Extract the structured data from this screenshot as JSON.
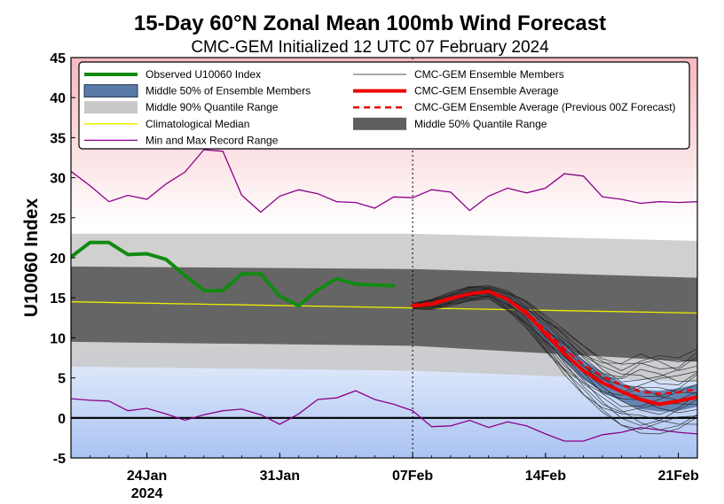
{
  "chart_data": {
    "type": "line",
    "title": "15-Day 60°N Zonal Mean 100mb Wind Forecast",
    "subtitle": "CMC-GEM Initialized 12 UTC 07 February 2024",
    "ylabel": "U10060 Index",
    "xlabel": "",
    "ylim": [
      -5,
      45
    ],
    "yticks": [
      -5,
      0,
      5,
      10,
      15,
      20,
      25,
      30,
      35,
      40,
      45
    ],
    "xlim": [
      "2024-01-20",
      "2024-02-22"
    ],
    "xticks": [
      {
        "date": "2024-01-24",
        "label": "24Jan",
        "label2": "2024"
      },
      {
        "date": "2024-01-31",
        "label": "31Jan",
        "label2": ""
      },
      {
        "date": "2024-02-07",
        "label": "07Feb",
        "label2": ""
      },
      {
        "date": "2024-02-14",
        "label": "14Feb",
        "label2": ""
      },
      {
        "date": "2024-02-21",
        "label": "21Feb",
        "label2": ""
      }
    ],
    "initialization_date": "2024-02-07",
    "grid": false,
    "legend_position": "top",
    "legend": [
      {
        "label": "Observed U10060 Index",
        "key": "observed"
      },
      {
        "label": "CMC-GEM Ensemble Members",
        "key": "members"
      },
      {
        "label": "Middle 50% of Ensemble Members",
        "key": "ens_iqr"
      },
      {
        "label": "CMC-GEM Ensemble Average",
        "key": "ens_mean"
      },
      {
        "label": "Middle 90% Quantile Range",
        "key": "clim90"
      },
      {
        "label": "CMC-GEM Ensemble Average (Previous 00Z Forecast)",
        "key": "prev_mean"
      },
      {
        "label": "Climatological Median",
        "key": "clim_median"
      },
      {
        "label": "Middle 50% Quantile Range",
        "key": "clim50"
      },
      {
        "label": "Min and Max Record Range",
        "key": "record"
      }
    ],
    "colors": {
      "observed": "#118a11",
      "members": "#1a1a1a",
      "ens_iqr": "#5a7aa8",
      "ens_mean": "#ee0000",
      "prev_mean": "#ee0000",
      "clim90": "#c8c8c8",
      "clim50": "#5f5f5f",
      "clim_median": "#eeee00",
      "record": "#8a008a",
      "bg_top": "#f6b9bf",
      "bg_bottom": "#aac3f2"
    },
    "series": {
      "observed": {
        "x": [
          "2024-01-20",
          "2024-01-21",
          "2024-01-22",
          "2024-01-23",
          "2024-01-24",
          "2024-01-25",
          "2024-01-26",
          "2024-01-27",
          "2024-01-28",
          "2024-01-29",
          "2024-01-30",
          "2024-01-31",
          "2024-02-01",
          "2024-02-02",
          "2024-02-03",
          "2024-02-04",
          "2024-02-05",
          "2024-02-06"
        ],
        "y": [
          20.1,
          21.9,
          21.9,
          20.4,
          20.5,
          19.8,
          17.8,
          15.9,
          15.9,
          18.0,
          18.0,
          15.2,
          14.0,
          16.0,
          17.4,
          16.7,
          16.6,
          16.5
        ]
      },
      "record_max": {
        "x": [
          "2024-01-20",
          "2024-01-21",
          "2024-01-22",
          "2024-01-23",
          "2024-01-24",
          "2024-01-25",
          "2024-01-26",
          "2024-01-27",
          "2024-01-28",
          "2024-01-29",
          "2024-01-30",
          "2024-01-31",
          "2024-02-01",
          "2024-02-02",
          "2024-02-03",
          "2024-02-04",
          "2024-02-05",
          "2024-02-06",
          "2024-02-07",
          "2024-02-08",
          "2024-02-09",
          "2024-02-10",
          "2024-02-11",
          "2024-02-12",
          "2024-02-13",
          "2024-02-14",
          "2024-02-15",
          "2024-02-16",
          "2024-02-17",
          "2024-02-18",
          "2024-02-19",
          "2024-02-20",
          "2024-02-21",
          "2024-02-22"
        ],
        "y": [
          30.8,
          29.0,
          27.0,
          27.8,
          27.3,
          29.2,
          30.7,
          33.5,
          33.3,
          27.8,
          25.7,
          27.7,
          28.5,
          28.0,
          27.0,
          26.9,
          26.2,
          27.6,
          27.5,
          28.5,
          28.2,
          25.9,
          27.7,
          28.7,
          28.1,
          28.7,
          30.5,
          30.2,
          27.6,
          27.3,
          26.8,
          27.0,
          26.9,
          27.0
        ],
        "note": "values estimated"
      },
      "record_min": {
        "x": [
          "2024-01-20",
          "2024-01-21",
          "2024-01-22",
          "2024-01-23",
          "2024-01-24",
          "2024-01-25",
          "2024-01-26",
          "2024-01-27",
          "2024-01-28",
          "2024-01-29",
          "2024-01-30",
          "2024-01-31",
          "2024-02-01",
          "2024-02-02",
          "2024-02-03",
          "2024-02-04",
          "2024-02-05",
          "2024-02-06",
          "2024-02-07",
          "2024-02-08",
          "2024-02-09",
          "2024-02-10",
          "2024-02-11",
          "2024-02-12",
          "2024-02-13",
          "2024-02-14",
          "2024-02-15",
          "2024-02-16",
          "2024-02-17",
          "2024-02-18",
          "2024-02-19",
          "2024-02-20",
          "2024-02-21",
          "2024-02-22"
        ],
        "y": [
          2.4,
          2.2,
          2.1,
          0.9,
          1.2,
          0.5,
          -0.3,
          0.4,
          0.9,
          1.1,
          0.4,
          -0.8,
          0.5,
          2.3,
          2.5,
          3.4,
          2.3,
          1.7,
          0.9,
          -1.1,
          -1.0,
          -0.3,
          -1.2,
          -0.5,
          -1.0,
          -2.0,
          -2.9,
          -2.9,
          -2.1,
          -1.8,
          -1.2,
          -1.5,
          -1.8,
          -2.0
        ]
      },
      "clim_median": {
        "x": [
          "2024-01-20",
          "2024-02-22"
        ],
        "y": [
          14.5,
          13.1
        ]
      },
      "clim90": {
        "x": [
          "2024-01-20",
          "2024-02-07",
          "2024-02-22"
        ],
        "upper": [
          23.0,
          23.0,
          22.1
        ],
        "lower": [
          6.4,
          5.9,
          4.5
        ]
      },
      "clim50": {
        "x": [
          "2024-01-20",
          "2024-02-07",
          "2024-02-22"
        ],
        "upper": [
          18.9,
          18.6,
          17.5
        ],
        "lower": [
          9.5,
          9.0,
          7.0
        ]
      },
      "ens_mean": {
        "x": [
          "2024-02-07",
          "2024-02-08",
          "2024-02-09",
          "2024-02-10",
          "2024-02-11",
          "2024-02-12",
          "2024-02-13",
          "2024-02-14",
          "2024-02-15",
          "2024-02-16",
          "2024-02-17",
          "2024-02-18",
          "2024-02-19",
          "2024-02-20",
          "2024-02-21",
          "2024-02-22"
        ],
        "y": [
          14.0,
          14.2,
          14.9,
          15.5,
          15.8,
          14.8,
          13.0,
          10.5,
          8.0,
          5.9,
          4.4,
          3.3,
          2.3,
          1.7,
          2.1,
          2.6
        ]
      },
      "prev_mean": {
        "x": [
          "2024-02-07",
          "2024-02-08",
          "2024-02-09",
          "2024-02-10",
          "2024-02-11",
          "2024-02-12",
          "2024-02-13",
          "2024-02-14",
          "2024-02-15",
          "2024-02-16",
          "2024-02-17",
          "2024-02-18",
          "2024-02-19",
          "2024-02-20",
          "2024-02-21",
          "2024-02-22"
        ],
        "y": [
          14.1,
          14.4,
          15.0,
          15.5,
          15.9,
          14.9,
          13.3,
          10.9,
          8.6,
          6.6,
          5.2,
          4.1,
          3.3,
          3.0,
          3.2,
          3.6
        ]
      },
      "ens_iqr": {
        "x": [
          "2024-02-07",
          "2024-02-08",
          "2024-02-09",
          "2024-02-10",
          "2024-02-11",
          "2024-02-12",
          "2024-02-13",
          "2024-02-14",
          "2024-02-15",
          "2024-02-16",
          "2024-02-17",
          "2024-02-18",
          "2024-02-19",
          "2024-02-20",
          "2024-02-21",
          "2024-02-22"
        ],
        "upper": [
          14.2,
          14.5,
          15.2,
          15.9,
          16.1,
          15.3,
          13.8,
          11.5,
          9.2,
          7.2,
          5.7,
          4.4,
          3.5,
          3.4,
          3.7,
          4.2
        ],
        "lower": [
          13.8,
          13.9,
          14.6,
          15.2,
          15.5,
          14.3,
          12.3,
          9.6,
          7.0,
          4.8,
          3.2,
          2.1,
          1.1,
          0.8,
          0.9,
          1.4
        ]
      },
      "members_spread": {
        "x": [
          "2024-02-07",
          "2024-02-08",
          "2024-02-09",
          "2024-02-10",
          "2024-02-11",
          "2024-02-12",
          "2024-02-13",
          "2024-02-14",
          "2024-02-15",
          "2024-02-16",
          "2024-02-17",
          "2024-02-18",
          "2024-02-19",
          "2024-02-20",
          "2024-02-21",
          "2024-02-22"
        ],
        "upper": [
          14.3,
          14.8,
          15.7,
          16.4,
          16.5,
          15.9,
          14.6,
          12.8,
          11.0,
          9.0,
          7.4,
          6.8,
          8.0,
          7.8,
          7.5,
          8.6
        ],
        "lower": [
          13.6,
          13.5,
          14.0,
          14.6,
          14.9,
          13.4,
          11.2,
          8.3,
          5.4,
          2.9,
          0.7,
          -0.9,
          -1.9,
          -2.0,
          -1.4,
          -0.8
        ]
      }
    }
  }
}
